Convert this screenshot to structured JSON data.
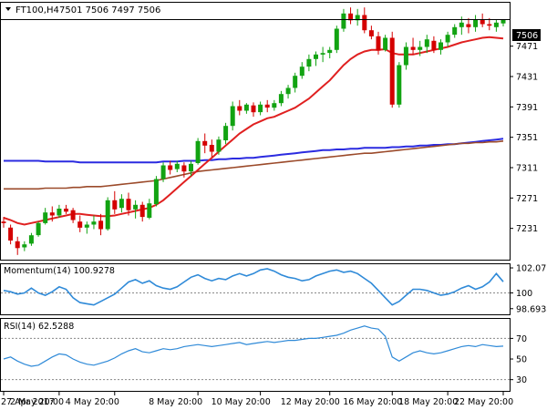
{
  "header": {
    "symbol": "FT100,H4",
    "ohlc": "7501 7506 7497 7506"
  },
  "price_panel": {
    "current_price_label": "7506",
    "y_ticks": [
      "7471",
      "7431",
      "7391",
      "7351",
      "7311",
      "7271",
      "7231"
    ]
  },
  "momentum_panel": {
    "label": "Momentum(14) 100.9278",
    "y_ticks": [
      "102.071",
      "100",
      "98.6933"
    ]
  },
  "rsi_panel": {
    "label": "RSI(14) 62.5288",
    "y_ticks": [
      "70",
      "50",
      "30"
    ]
  },
  "x_ticks": [
    "27 Apr 2017",
    "2 May 20:00",
    "4 May 20:00",
    "8 May 20:00",
    "10 May 20:00",
    "12 May 20:00",
    "16 May 20:00",
    "18 May 20:00",
    "22 May 20:00"
  ],
  "colors": {
    "bull": "#12a312",
    "bear": "#d40000",
    "sma_fast": "#e02020",
    "sma_mid": "#2b2be0",
    "sma_slow": "#9b4a2a",
    "indicator": "#2f8ad8"
  },
  "chart_data": [
    {
      "type": "candlestick",
      "title": "FT100,H4",
      "ylim": [
        7191,
        7527
      ],
      "y_ticks": [
        7471,
        7431,
        7391,
        7351,
        7311,
        7271,
        7231
      ],
      "current_price": 7506,
      "candles": [
        [
          7240,
          7246,
          7232,
          7238
        ],
        [
          7232,
          7236,
          7210,
          7215
        ],
        [
          7214,
          7220,
          7196,
          7205
        ],
        [
          7206,
          7214,
          7201,
          7210
        ],
        [
          7211,
          7225,
          7208,
          7222
        ],
        [
          7222,
          7240,
          7220,
          7238
        ],
        [
          7238,
          7258,
          7236,
          7252
        ],
        [
          7252,
          7260,
          7240,
          7248
        ],
        [
          7248,
          7262,
          7245,
          7257
        ],
        [
          7257,
          7262,
          7250,
          7253
        ],
        [
          7255,
          7258,
          7238,
          7242
        ],
        [
          7240,
          7248,
          7226,
          7232
        ],
        [
          7232,
          7240,
          7224,
          7236
        ],
        [
          7236,
          7248,
          7230,
          7240
        ],
        [
          7241,
          7250,
          7222,
          7230
        ],
        [
          7230,
          7272,
          7228,
          7268
        ],
        [
          7268,
          7280,
          7250,
          7256
        ],
        [
          7258,
          7276,
          7252,
          7270
        ],
        [
          7270,
          7278,
          7248,
          7255
        ],
        [
          7256,
          7268,
          7244,
          7262
        ],
        [
          7262,
          7266,
          7240,
          7246
        ],
        [
          7245,
          7270,
          7243,
          7264
        ],
        [
          7263,
          7300,
          7260,
          7296
        ],
        [
          7296,
          7318,
          7292,
          7314
        ],
        [
          7314,
          7320,
          7302,
          7308
        ],
        [
          7309,
          7320,
          7305,
          7316
        ],
        [
          7314,
          7318,
          7298,
          7306
        ],
        [
          7306,
          7320,
          7300,
          7316
        ],
        [
          7317,
          7350,
          7315,
          7346
        ],
        [
          7346,
          7356,
          7330,
          7340
        ],
        [
          7341,
          7348,
          7325,
          7332
        ],
        [
          7332,
          7352,
          7328,
          7348
        ],
        [
          7347,
          7370,
          7342,
          7366
        ],
        [
          7366,
          7398,
          7360,
          7392
        ],
        [
          7392,
          7400,
          7380,
          7386
        ],
        [
          7386,
          7396,
          7382,
          7394
        ],
        [
          7393,
          7397,
          7378,
          7384
        ],
        [
          7384,
          7398,
          7380,
          7394
        ],
        [
          7394,
          7400,
          7384,
          7390
        ],
        [
          7390,
          7400,
          7386,
          7396
        ],
        [
          7396,
          7412,
          7392,
          7408
        ],
        [
          7408,
          7420,
          7402,
          7416
        ],
        [
          7416,
          7436,
          7410,
          7432
        ],
        [
          7432,
          7450,
          7428,
          7444
        ],
        [
          7444,
          7460,
          7438,
          7454
        ],
        [
          7454,
          7464,
          7445,
          7460
        ],
        [
          7460,
          7470,
          7450,
          7462
        ],
        [
          7462,
          7470,
          7455,
          7466
        ],
        [
          7466,
          7498,
          7462,
          7494
        ],
        [
          7494,
          7520,
          7490,
          7514
        ],
        [
          7514,
          7522,
          7500,
          7505
        ],
        [
          7505,
          7520,
          7498,
          7512
        ],
        [
          7512,
          7522,
          7488,
          7492
        ],
        [
          7492,
          7498,
          7480,
          7484
        ],
        [
          7484,
          7490,
          7460,
          7465
        ],
        [
          7466,
          7486,
          7464,
          7482
        ],
        [
          7482,
          7490,
          7390,
          7394
        ],
        [
          7394,
          7450,
          7390,
          7446
        ],
        [
          7446,
          7476,
          7440,
          7470
        ],
        [
          7470,
          7482,
          7460,
          7466
        ],
        [
          7466,
          7478,
          7458,
          7470
        ],
        [
          7470,
          7486,
          7462,
          7480
        ],
        [
          7478,
          7484,
          7462,
          7466
        ],
        [
          7466,
          7480,
          7460,
          7476
        ],
        [
          7476,
          7490,
          7470,
          7486
        ],
        [
          7486,
          7500,
          7482,
          7496
        ],
        [
          7496,
          7510,
          7486,
          7502
        ],
        [
          7500,
          7508,
          7488,
          7496
        ],
        [
          7496,
          7512,
          7490,
          7506
        ],
        [
          7506,
          7514,
          7496,
          7500
        ],
        [
          7500,
          7508,
          7492,
          7498
        ],
        [
          7496,
          7506,
          7490,
          7502
        ],
        [
          7501,
          7506,
          7497,
          7506
        ]
      ],
      "series": [
        {
          "values": [
            7245,
            7242,
            7238,
            7236,
            7238,
            7240,
            7242,
            7244,
            7246,
            7248,
            7250,
            7250,
            7249,
            7248,
            7247,
            7247,
            7248,
            7250,
            7252,
            7254,
            7256,
            7258,
            7262,
            7268,
            7276,
            7284,
            7292,
            7300,
            7308,
            7316,
            7324,
            7332,
            7340,
            7348,
            7356,
            7362,
            7368,
            7372,
            7376,
            7378,
            7382,
            7386,
            7390,
            7396,
            7402,
            7410,
            7418,
            7426,
            7436,
            7446,
            7454,
            7460,
            7464,
            7466,
            7466,
            7467,
            7462,
            7460,
            7460,
            7460,
            7462,
            7464,
            7466,
            7468,
            7470,
            7473,
            7476,
            7478,
            7480,
            7482,
            7483,
            7482,
            7481
          ]
        },
        {
          "values": [
            7283,
            7283,
            7283,
            7283,
            7283,
            7283,
            7284,
            7284,
            7284,
            7284,
            7285,
            7285,
            7286,
            7286,
            7286,
            7287,
            7288,
            7289,
            7290,
            7291,
            7292,
            7293,
            7294,
            7296,
            7298,
            7300,
            7302,
            7304,
            7306,
            7307,
            7308,
            7309,
            7310,
            7311,
            7312,
            7313,
            7314,
            7315,
            7316,
            7317,
            7318,
            7319,
            7320,
            7321,
            7322,
            7323,
            7324,
            7325,
            7326,
            7327,
            7328,
            7329,
            7330,
            7330,
            7331,
            7332,
            7333,
            7334,
            7335,
            7336,
            7337,
            7338,
            7339,
            7340,
            7341,
            7342,
            7343,
            7343,
            7344,
            7344,
            7345,
            7345,
            7346
          ]
        },
        {
          "values": [
            7320,
            7320,
            7320,
            7320,
            7320,
            7320,
            7319,
            7319,
            7319,
            7319,
            7319,
            7318,
            7318,
            7318,
            7318,
            7318,
            7318,
            7318,
            7318,
            7318,
            7318,
            7318,
            7318,
            7319,
            7319,
            7319,
            7320,
            7320,
            7320,
            7321,
            7321,
            7322,
            7322,
            7323,
            7323,
            7324,
            7324,
            7325,
            7326,
            7327,
            7328,
            7329,
            7330,
            7331,
            7332,
            7333,
            7334,
            7334,
            7335,
            7335,
            7336,
            7336,
            7337,
            7337,
            7337,
            7337,
            7338,
            7338,
            7339,
            7339,
            7340,
            7340,
            7341,
            7341,
            7342,
            7342,
            7343,
            7344,
            7345,
            7346,
            7347,
            7348,
            7349
          ]
        }
      ]
    },
    {
      "type": "line",
      "title": "Momentum(14) 100.9278",
      "ylim": [
        98.3,
        102.3
      ],
      "y_ticks": [
        102.071,
        100,
        98.6933
      ],
      "values": [
        100.2,
        100.1,
        99.9,
        100.0,
        100.4,
        100.0,
        99.8,
        100.1,
        100.5,
        100.3,
        99.6,
        99.2,
        99.1,
        99.0,
        99.3,
        99.6,
        99.9,
        100.4,
        100.9,
        101.1,
        100.8,
        101.0,
        100.6,
        100.4,
        100.3,
        100.5,
        100.9,
        101.3,
        101.5,
        101.2,
        101.0,
        101.2,
        101.1,
        101.4,
        101.6,
        101.4,
        101.6,
        101.9,
        102.0,
        101.8,
        101.5,
        101.3,
        101.2,
        101.0,
        101.1,
        101.4,
        101.6,
        101.8,
        101.9,
        101.7,
        101.8,
        101.6,
        101.2,
        100.8,
        100.2,
        99.6,
        99.0,
        99.3,
        99.8,
        100.3,
        100.3,
        100.2,
        100.0,
        99.8,
        99.9,
        100.1,
        100.4,
        100.6,
        100.3,
        100.5,
        100.9,
        101.6,
        100.93
      ]
    },
    {
      "type": "line",
      "title": "RSI(14) 62.5288",
      "ylim": [
        20,
        88
      ],
      "y_ticks": [
        70,
        50,
        30
      ],
      "values": [
        50,
        52,
        48,
        45,
        43,
        44,
        48,
        52,
        55,
        54,
        50,
        47,
        45,
        44,
        46,
        48,
        51,
        55,
        58,
        60,
        57,
        56,
        58,
        60,
        59,
        60,
        62,
        63,
        64,
        63,
        62,
        63,
        64,
        65,
        66,
        64,
        65,
        66,
        67,
        66,
        67,
        68,
        68,
        69,
        70,
        70,
        71,
        72,
        73,
        75,
        78,
        80,
        82,
        80,
        79,
        72,
        52,
        48,
        52,
        56,
        58,
        56,
        55,
        56,
        58,
        60,
        62,
        63,
        62,
        64,
        63,
        62,
        62.5
      ]
    }
  ]
}
